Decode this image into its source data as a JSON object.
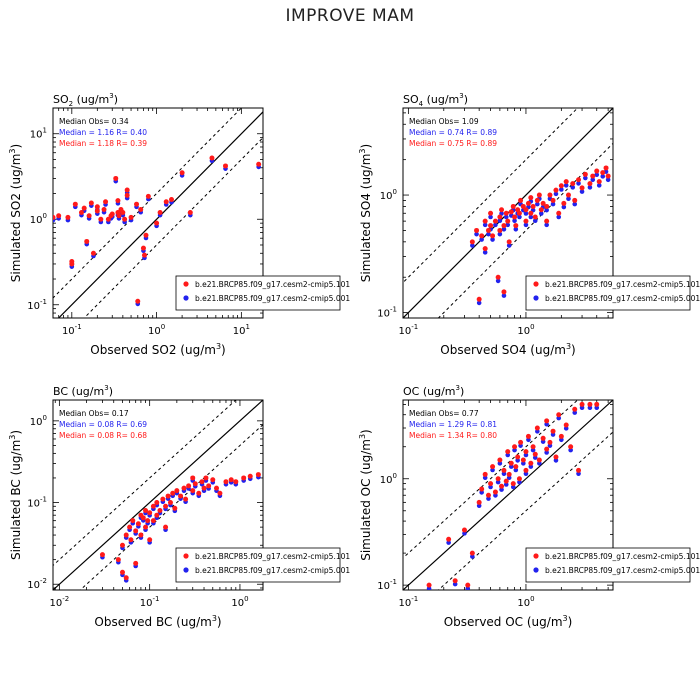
{
  "page_title": "IMPROVE MAM",
  "colors": {
    "model1": "#ff1a1a",
    "model2": "#2222ee",
    "median_obs": "#000000",
    "axis": "#000000"
  },
  "legend_entries": [
    "b.e21.BRCP85.f09_g17.cesm2-cmip5.101",
    "b.e21.BRCP85.f09_g17.cesm2-cmip5.001"
  ],
  "chart_data": [
    {
      "id": "so2",
      "type": "scatter",
      "loglog": true,
      "title_main": "SO",
      "title_sub": "2",
      "title_unit": " (ug/m",
      "title_sup": "3",
      "title_close": ")",
      "xlabel": "Observed SO2 (ug/m",
      "ylabel": "Simulated SO2 (ug/m",
      "label_sup": "3",
      "label_close": ")",
      "xlim": [
        0.06,
        18
      ],
      "ylim": [
        0.07,
        20
      ],
      "x_ticks": [
        {
          "v": 0.1,
          "label": "10",
          "exp": "-1"
        },
        {
          "v": 1,
          "label": "10",
          "exp": "0"
        },
        {
          "v": 10,
          "label": "10",
          "exp": "1"
        }
      ],
      "y_ticks": [
        {
          "v": 0.1,
          "label": "10",
          "exp": "-1"
        },
        {
          "v": 1,
          "label": "10",
          "exp": "0"
        },
        {
          "v": 10,
          "label": "10",
          "exp": "1"
        }
      ],
      "stats": [
        "Median Obs= 0.34",
        "Median = 1.16 R= 0.40",
        "Median = 1.18 R= 0.39"
      ],
      "points": [
        [
          0.06,
          1.05
        ],
        [
          0.07,
          1.1
        ],
        [
          0.09,
          1.05
        ],
        [
          0.1,
          0.3
        ],
        [
          0.1,
          0.32
        ],
        [
          0.11,
          1.5
        ],
        [
          0.13,
          1.2
        ],
        [
          0.14,
          1.35
        ],
        [
          0.15,
          0.55
        ],
        [
          0.16,
          1.1
        ],
        [
          0.17,
          1.55
        ],
        [
          0.18,
          0.4
        ],
        [
          0.2,
          1.4
        ],
        [
          0.2,
          1.25
        ],
        [
          0.22,
          1.0
        ],
        [
          0.24,
          1.3
        ],
        [
          0.25,
          1.6
        ],
        [
          0.27,
          1.0
        ],
        [
          0.29,
          1.1
        ],
        [
          0.3,
          1.15
        ],
        [
          0.33,
          3.0
        ],
        [
          0.35,
          1.2
        ],
        [
          0.35,
          1.65
        ],
        [
          0.36,
          1.1
        ],
        [
          0.38,
          1.3
        ],
        [
          0.4,
          1.2
        ],
        [
          0.42,
          1.0
        ],
        [
          0.45,
          2.2
        ],
        [
          0.45,
          1.9
        ],
        [
          0.5,
          1.05
        ],
        [
          0.58,
          1.5
        ],
        [
          0.6,
          0.11
        ],
        [
          0.65,
          1.3
        ],
        [
          0.7,
          0.46
        ],
        [
          0.72,
          0.38
        ],
        [
          0.75,
          0.65
        ],
        [
          0.8,
          1.85
        ],
        [
          1.0,
          0.9
        ],
        [
          1.1,
          1.2
        ],
        [
          1.3,
          1.6
        ],
        [
          1.5,
          1.7
        ],
        [
          2.0,
          3.5
        ],
        [
          2.5,
          1.2
        ],
        [
          4.5,
          5.2
        ],
        [
          6.5,
          4.2
        ],
        [
          16.0,
          4.4
        ]
      ]
    },
    {
      "id": "so4",
      "type": "scatter",
      "loglog": true,
      "title_main": "SO",
      "title_sub": "4",
      "title_unit": " (ug/m",
      "title_sup": "3",
      "title_close": ")",
      "xlabel": "Observed SO4 (ug/m",
      "ylabel": "Simulated SO4 (ug/m",
      "label_sup": "3",
      "label_close": ")",
      "xlim": [
        0.09,
        5.5
      ],
      "ylim": [
        0.09,
        5.5
      ],
      "x_ticks": [
        {
          "v": 0.1,
          "label": "10",
          "exp": "-1"
        },
        {
          "v": 1,
          "label": "10",
          "exp": "0"
        }
      ],
      "y_ticks": [
        {
          "v": 0.1,
          "label": "10",
          "exp": "-1"
        },
        {
          "v": 1,
          "label": "10",
          "exp": "0"
        }
      ],
      "stats": [
        "Median Obs= 1.09",
        "Median = 0.74 R= 0.89",
        "Median = 0.75 R= 0.89"
      ],
      "points": [
        [
          0.35,
          0.4
        ],
        [
          0.38,
          0.5
        ],
        [
          0.4,
          0.13
        ],
        [
          0.42,
          0.45
        ],
        [
          0.45,
          0.6
        ],
        [
          0.45,
          0.35
        ],
        [
          0.48,
          0.5
        ],
        [
          0.5,
          0.55
        ],
        [
          0.5,
          0.7
        ],
        [
          0.52,
          0.45
        ],
        [
          0.55,
          0.6
        ],
        [
          0.58,
          0.2
        ],
        [
          0.6,
          0.65
        ],
        [
          0.6,
          0.5
        ],
        [
          0.62,
          0.75
        ],
        [
          0.65,
          0.15
        ],
        [
          0.65,
          0.55
        ],
        [
          0.68,
          0.7
        ],
        [
          0.7,
          0.6
        ],
        [
          0.72,
          0.4
        ],
        [
          0.75,
          0.72
        ],
        [
          0.78,
          0.8
        ],
        [
          0.8,
          0.65
        ],
        [
          0.82,
          0.55
        ],
        [
          0.85,
          0.75
        ],
        [
          0.88,
          0.7
        ],
        [
          0.9,
          0.9
        ],
        [
          0.95,
          0.8
        ],
        [
          1.0,
          0.75
        ],
        [
          1.0,
          0.6
        ],
        [
          1.05,
          0.85
        ],
        [
          1.1,
          0.95
        ],
        [
          1.1,
          0.7
        ],
        [
          1.15,
          0.8
        ],
        [
          1.2,
          0.65
        ],
        [
          1.25,
          0.9
        ],
        [
          1.3,
          1.0
        ],
        [
          1.35,
          0.75
        ],
        [
          1.4,
          0.85
        ],
        [
          1.5,
          0.8
        ],
        [
          1.5,
          0.6
        ],
        [
          1.6,
          1.0
        ],
        [
          1.7,
          0.9
        ],
        [
          1.8,
          1.1
        ],
        [
          1.9,
          0.7
        ],
        [
          2.0,
          1.2
        ],
        [
          2.1,
          0.85
        ],
        [
          2.2,
          1.3
        ],
        [
          2.3,
          1.0
        ],
        [
          2.5,
          1.25
        ],
        [
          2.6,
          0.9
        ],
        [
          2.8,
          1.35
        ],
        [
          3.0,
          1.15
        ],
        [
          3.2,
          1.5
        ],
        [
          3.5,
          1.25
        ],
        [
          3.7,
          1.45
        ],
        [
          4.0,
          1.6
        ],
        [
          4.2,
          1.3
        ],
        [
          4.5,
          1.55
        ],
        [
          4.8,
          1.7
        ],
        [
          5.0,
          1.45
        ]
      ]
    },
    {
      "id": "bc",
      "type": "scatter",
      "loglog": true,
      "title_main": "BC",
      "title_sub": "",
      "title_unit": " (ug/m",
      "title_sup": "3",
      "title_close": ")",
      "xlabel": "Observed BC (ug/m",
      "ylabel": "Simulated BC (ug/m",
      "label_sup": "3",
      "label_close": ")",
      "xlim": [
        0.0085,
        1.8
      ],
      "ylim": [
        0.0085,
        1.8
      ],
      "x_ticks": [
        {
          "v": 0.01,
          "label": "10",
          "exp": "-2"
        },
        {
          "v": 0.1,
          "label": "10",
          "exp": "-1"
        },
        {
          "v": 1,
          "label": "10",
          "exp": "0"
        }
      ],
      "y_ticks": [
        {
          "v": 0.01,
          "label": "10",
          "exp": "-2"
        },
        {
          "v": 0.1,
          "label": "10",
          "exp": "-1"
        },
        {
          "v": 1,
          "label": "10",
          "exp": "0"
        }
      ],
      "stats": [
        "Median Obs= 0.17",
        "Median = 0.08 R= 0.69",
        "Median = 0.08 R= 0.68"
      ],
      "points": [
        [
          0.03,
          0.023
        ],
        [
          0.045,
          0.02
        ],
        [
          0.05,
          0.03
        ],
        [
          0.05,
          0.014
        ],
        [
          0.055,
          0.012
        ],
        [
          0.055,
          0.04
        ],
        [
          0.06,
          0.05
        ],
        [
          0.062,
          0.035
        ],
        [
          0.065,
          0.06
        ],
        [
          0.07,
          0.045
        ],
        [
          0.07,
          0.018
        ],
        [
          0.075,
          0.055
        ],
        [
          0.08,
          0.07
        ],
        [
          0.08,
          0.04
        ],
        [
          0.085,
          0.065
        ],
        [
          0.09,
          0.08
        ],
        [
          0.09,
          0.05
        ],
        [
          0.095,
          0.06
        ],
        [
          0.1,
          0.075
        ],
        [
          0.1,
          0.035
        ],
        [
          0.11,
          0.09
        ],
        [
          0.11,
          0.06
        ],
        [
          0.12,
          0.1
        ],
        [
          0.12,
          0.07
        ],
        [
          0.13,
          0.08
        ],
        [
          0.14,
          0.11
        ],
        [
          0.15,
          0.09
        ],
        [
          0.15,
          0.05
        ],
        [
          0.16,
          0.12
        ],
        [
          0.17,
          0.1
        ],
        [
          0.18,
          0.13
        ],
        [
          0.19,
          0.085
        ],
        [
          0.2,
          0.14
        ],
        [
          0.22,
          0.12
        ],
        [
          0.24,
          0.15
        ],
        [
          0.25,
          0.11
        ],
        [
          0.27,
          0.16
        ],
        [
          0.3,
          0.14
        ],
        [
          0.3,
          0.2
        ],
        [
          0.32,
          0.17
        ],
        [
          0.35,
          0.13
        ],
        [
          0.38,
          0.18
        ],
        [
          0.4,
          0.15
        ],
        [
          0.42,
          0.2
        ],
        [
          0.45,
          0.16
        ],
        [
          0.5,
          0.19
        ],
        [
          0.55,
          0.15
        ],
        [
          0.6,
          0.13
        ],
        [
          0.7,
          0.18
        ],
        [
          0.8,
          0.19
        ],
        [
          0.9,
          0.18
        ],
        [
          1.1,
          0.2
        ],
        [
          1.3,
          0.21
        ],
        [
          1.6,
          0.22
        ]
      ]
    },
    {
      "id": "oc",
      "type": "scatter",
      "loglog": true,
      "title_main": "OC",
      "title_sub": "",
      "title_unit": " (ug/m",
      "title_sup": "3",
      "title_close": ")",
      "xlabel": "Observed OC (ug/m",
      "ylabel": "Simulated OC (ug/m",
      "label_sup": "3",
      "label_close": ")",
      "xlim": [
        0.09,
        5.5
      ],
      "ylim": [
        0.09,
        5.5
      ],
      "x_ticks": [
        {
          "v": 0.1,
          "label": "10",
          "exp": "-1"
        },
        {
          "v": 1,
          "label": "10",
          "exp": "0"
        }
      ],
      "y_ticks": [
        {
          "v": 0.1,
          "label": "10",
          "exp": "-1"
        },
        {
          "v": 1,
          "label": "10",
          "exp": "0"
        }
      ],
      "stats": [
        "Median Obs= 0.77",
        "Median = 1.29 R= 0.81",
        "Median = 1.34 R= 0.80"
      ],
      "points": [
        [
          0.15,
          0.1
        ],
        [
          0.22,
          0.27
        ],
        [
          0.25,
          0.11
        ],
        [
          0.3,
          0.33
        ],
        [
          0.32,
          0.1
        ],
        [
          0.35,
          0.2
        ],
        [
          0.4,
          0.6
        ],
        [
          0.42,
          0.8
        ],
        [
          0.45,
          1.1
        ],
        [
          0.48,
          0.7
        ],
        [
          0.5,
          0.9
        ],
        [
          0.52,
          1.3
        ],
        [
          0.55,
          0.75
        ],
        [
          0.58,
          1.0
        ],
        [
          0.6,
          1.5
        ],
        [
          0.62,
          0.85
        ],
        [
          0.65,
          1.2
        ],
        [
          0.68,
          0.95
        ],
        [
          0.7,
          1.8
        ],
        [
          0.72,
          1.1
        ],
        [
          0.75,
          1.4
        ],
        [
          0.78,
          0.9
        ],
        [
          0.8,
          2.0
        ],
        [
          0.82,
          1.3
        ],
        [
          0.85,
          1.6
        ],
        [
          0.88,
          1.0
        ],
        [
          0.9,
          2.2
        ],
        [
          0.95,
          1.5
        ],
        [
          1.0,
          1.8
        ],
        [
          1.0,
          1.2
        ],
        [
          1.05,
          2.5
        ],
        [
          1.1,
          1.4
        ],
        [
          1.15,
          2.0
        ],
        [
          1.2,
          1.7
        ],
        [
          1.25,
          3.0
        ],
        [
          1.3,
          1.5
        ],
        [
          1.4,
          2.4
        ],
        [
          1.5,
          1.9
        ],
        [
          1.5,
          3.5
        ],
        [
          1.6,
          2.2
        ],
        [
          1.7,
          2.8
        ],
        [
          1.8,
          1.6
        ],
        [
          1.9,
          4.0
        ],
        [
          2.0,
          2.5
        ],
        [
          2.2,
          3.2
        ],
        [
          2.4,
          2.0
        ],
        [
          2.6,
          4.5
        ],
        [
          2.8,
          1.2
        ],
        [
          3.0,
          5.0
        ],
        [
          3.5,
          5.0
        ],
        [
          4.0,
          5.0
        ]
      ]
    }
  ]
}
